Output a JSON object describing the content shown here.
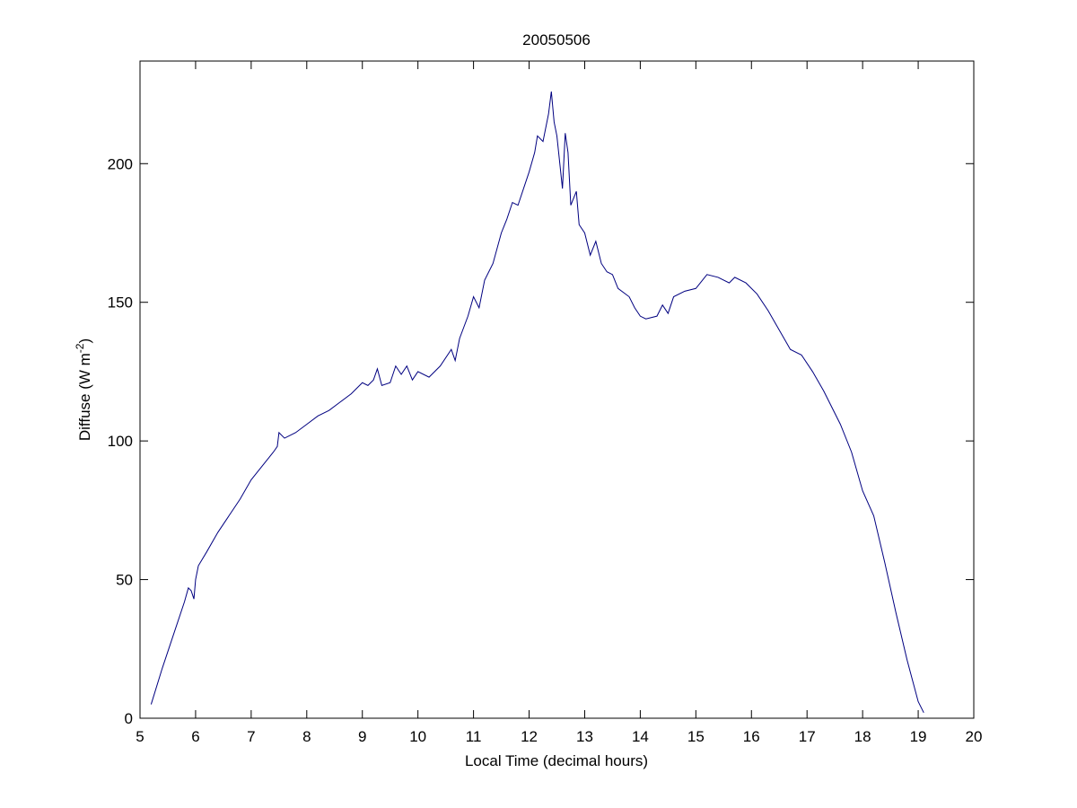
{
  "chart_data": {
    "type": "line",
    "title": "20050506",
    "xlabel": "Local Time (decimal hours)",
    "ylabel_parts": [
      "Diffuse (W m",
      "-2",
      ")"
    ],
    "xlim": [
      5,
      20
    ],
    "ylim": [
      0,
      237
    ],
    "xticks": [
      5,
      6,
      7,
      8,
      9,
      10,
      11,
      12,
      13,
      14,
      15,
      16,
      17,
      18,
      19,
      20
    ],
    "yticks": [
      0,
      50,
      100,
      150,
      200
    ],
    "grid": false,
    "series": [
      {
        "color": "#000080",
        "x": [
          5.2,
          5.4,
          5.6,
          5.8,
          5.87,
          5.92,
          5.97,
          6.0,
          6.05,
          6.2,
          6.4,
          6.6,
          6.8,
          7.0,
          7.2,
          7.4,
          7.47,
          7.5,
          7.6,
          7.8,
          8.0,
          8.2,
          8.4,
          8.6,
          8.8,
          9.0,
          9.1,
          9.2,
          9.27,
          9.35,
          9.5,
          9.6,
          9.7,
          9.8,
          9.9,
          10.0,
          10.2,
          10.4,
          10.6,
          10.67,
          10.75,
          10.9,
          11.0,
          11.1,
          11.2,
          11.35,
          11.5,
          11.6,
          11.7,
          11.8,
          11.9,
          12.0,
          12.1,
          12.15,
          12.25,
          12.35,
          12.4,
          12.45,
          12.5,
          12.6,
          12.65,
          12.7,
          12.75,
          12.85,
          12.9,
          13.0,
          13.1,
          13.2,
          13.3,
          13.4,
          13.5,
          13.6,
          13.8,
          13.9,
          14.0,
          14.1,
          14.3,
          14.4,
          14.5,
          14.6,
          14.8,
          15.0,
          15.2,
          15.4,
          15.6,
          15.7,
          15.9,
          16.1,
          16.3,
          16.5,
          16.7,
          16.9,
          17.1,
          17.3,
          17.5,
          17.6,
          17.8,
          17.9,
          18.0,
          18.2,
          18.4,
          18.6,
          18.8,
          19.0,
          19.1
        ],
        "values": [
          5,
          18,
          30,
          42,
          47,
          46,
          43,
          50,
          55,
          60,
          67,
          73,
          79,
          86,
          91,
          96,
          98,
          103,
          101,
          103,
          106,
          109,
          111,
          114,
          117,
          121,
          120,
          122,
          126,
          120,
          121,
          127,
          124,
          127,
          122,
          125,
          123,
          127,
          133,
          129,
          137,
          145,
          152,
          148,
          158,
          164,
          175,
          180,
          186,
          185,
          191,
          197,
          204,
          210,
          208,
          218,
          226,
          215,
          210,
          191,
          211,
          204,
          185,
          190,
          178,
          175,
          167,
          172,
          164,
          161,
          160,
          155,
          152,
          148,
          145,
          144,
          145,
          149,
          146,
          152,
          154,
          155,
          160,
          159,
          157,
          159,
          157,
          153,
          147,
          140,
          133,
          131,
          125,
          118,
          110,
          106,
          96,
          89,
          82,
          73,
          56,
          38,
          21,
          6,
          2
        ]
      }
    ]
  }
}
